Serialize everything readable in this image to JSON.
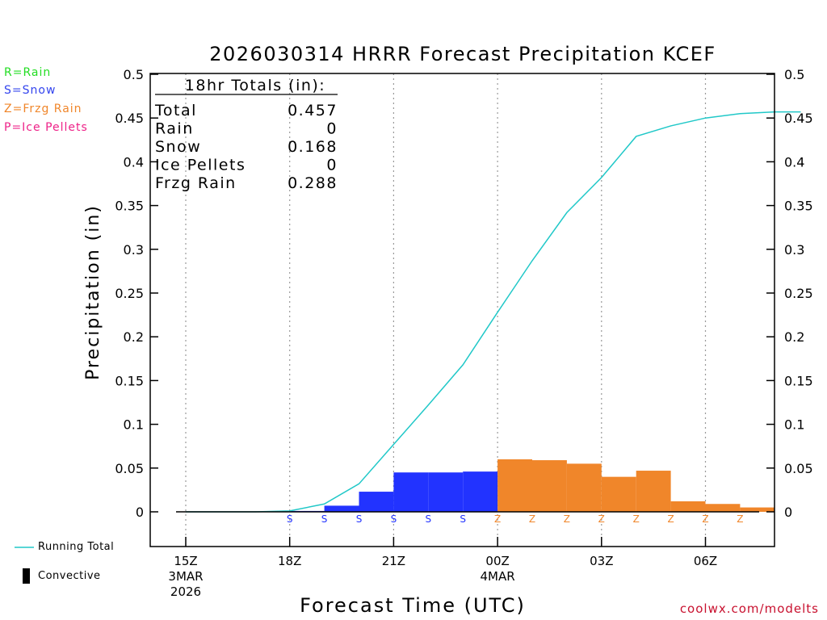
{
  "chart_data": {
    "type": "bar+line",
    "title": "2026030314 HRRR Forecast Precipitation KCEF",
    "xlabel": "Forecast Time (UTC)",
    "ylabel": "Precipitation (in)",
    "ylim": [
      -0.04,
      0.5
    ],
    "yticks": [
      0,
      0.05,
      0.1,
      0.15,
      0.2,
      0.25,
      0.3,
      0.35,
      0.4,
      0.45,
      0.5
    ],
    "ytick_labels": [
      "0",
      "0.05",
      "0.1",
      "0.15",
      "0.2",
      "0.25",
      "0.3",
      "0.35",
      "0.4",
      "0.45",
      "0.5"
    ],
    "xlim_hours": [
      -0.25,
      17.75
    ],
    "xticks": [
      {
        "hour": 0,
        "line1": "15Z",
        "line2": "3MAR",
        "line3": "2026"
      },
      {
        "hour": 3,
        "line1": "18Z",
        "line2": "",
        "line3": ""
      },
      {
        "hour": 6,
        "line1": "21Z",
        "line2": "",
        "line3": ""
      },
      {
        "hour": 9,
        "line1": "00Z",
        "line2": "4MAR",
        "line3": ""
      },
      {
        "hour": 12,
        "line1": "03Z",
        "line2": "",
        "line3": ""
      },
      {
        "hour": 15,
        "line1": "06Z",
        "line2": "",
        "line3": ""
      }
    ],
    "bars": [
      {
        "hour": 3,
        "value": 0.001,
        "type": "S"
      },
      {
        "hour": 4,
        "value": 0.007,
        "type": "S"
      },
      {
        "hour": 5,
        "value": 0.023,
        "type": "S"
      },
      {
        "hour": 6,
        "value": 0.045,
        "type": "S"
      },
      {
        "hour": 7,
        "value": 0.045,
        "type": "S"
      },
      {
        "hour": 8,
        "value": 0.046,
        "type": "S"
      },
      {
        "hour": 9,
        "value": 0.06,
        "type": "Z"
      },
      {
        "hour": 10,
        "value": 0.059,
        "type": "Z"
      },
      {
        "hour": 11,
        "value": 0.055,
        "type": "Z"
      },
      {
        "hour": 12,
        "value": 0.04,
        "type": "Z"
      },
      {
        "hour": 13,
        "value": 0.047,
        "type": "Z"
      },
      {
        "hour": 14,
        "value": 0.012,
        "type": "Z"
      },
      {
        "hour": 15,
        "value": 0.009,
        "type": "Z"
      },
      {
        "hour": 16,
        "value": 0.005,
        "type": "Z"
      }
    ],
    "running_total": {
      "name": "Running Total",
      "color": "#20c8c8",
      "points": [
        [
          0,
          0
        ],
        [
          1,
          0
        ],
        [
          2,
          0
        ],
        [
          3,
          0.001
        ],
        [
          4,
          0.009
        ],
        [
          5,
          0.032
        ],
        [
          6,
          0.077
        ],
        [
          7,
          0.122
        ],
        [
          8,
          0.168
        ],
        [
          9,
          0.228
        ],
        [
          10,
          0.287
        ],
        [
          11,
          0.342
        ],
        [
          12,
          0.382
        ],
        [
          13,
          0.429
        ],
        [
          14,
          0.441
        ],
        [
          15,
          0.45
        ],
        [
          16,
          0.455
        ],
        [
          17,
          0.457
        ],
        [
          17.75,
          0.457
        ]
      ]
    },
    "type_colors": {
      "S": "#2233ff",
      "Z": "#f0862a",
      "R": "#22dd22",
      "P": "#ee2288"
    },
    "totals_box": {
      "header": "18hr Totals (in):",
      "rows": [
        {
          "label": "Total",
          "value": "0.457"
        },
        {
          "label": "Rain",
          "value": "0"
        },
        {
          "label": "Snow",
          "value": "0.168"
        },
        {
          "label": "Ice Pellets",
          "value": "0"
        },
        {
          "label": "Frzg Rain",
          "value": "0.288"
        }
      ]
    }
  },
  "type_legend": [
    {
      "text": "R=Rain",
      "color": "#22dd22"
    },
    {
      "text": "S=Snow",
      "color": "#3344ee"
    },
    {
      "text": "Z=Frzg Rain",
      "color": "#f0862a"
    },
    {
      "text": "P=Ice Pellets",
      "color": "#ee2288"
    }
  ],
  "bottom_legend": {
    "running_total_label": "Running Total",
    "convective_label": "Convective"
  },
  "watermark": "coolwx.com/modelts"
}
